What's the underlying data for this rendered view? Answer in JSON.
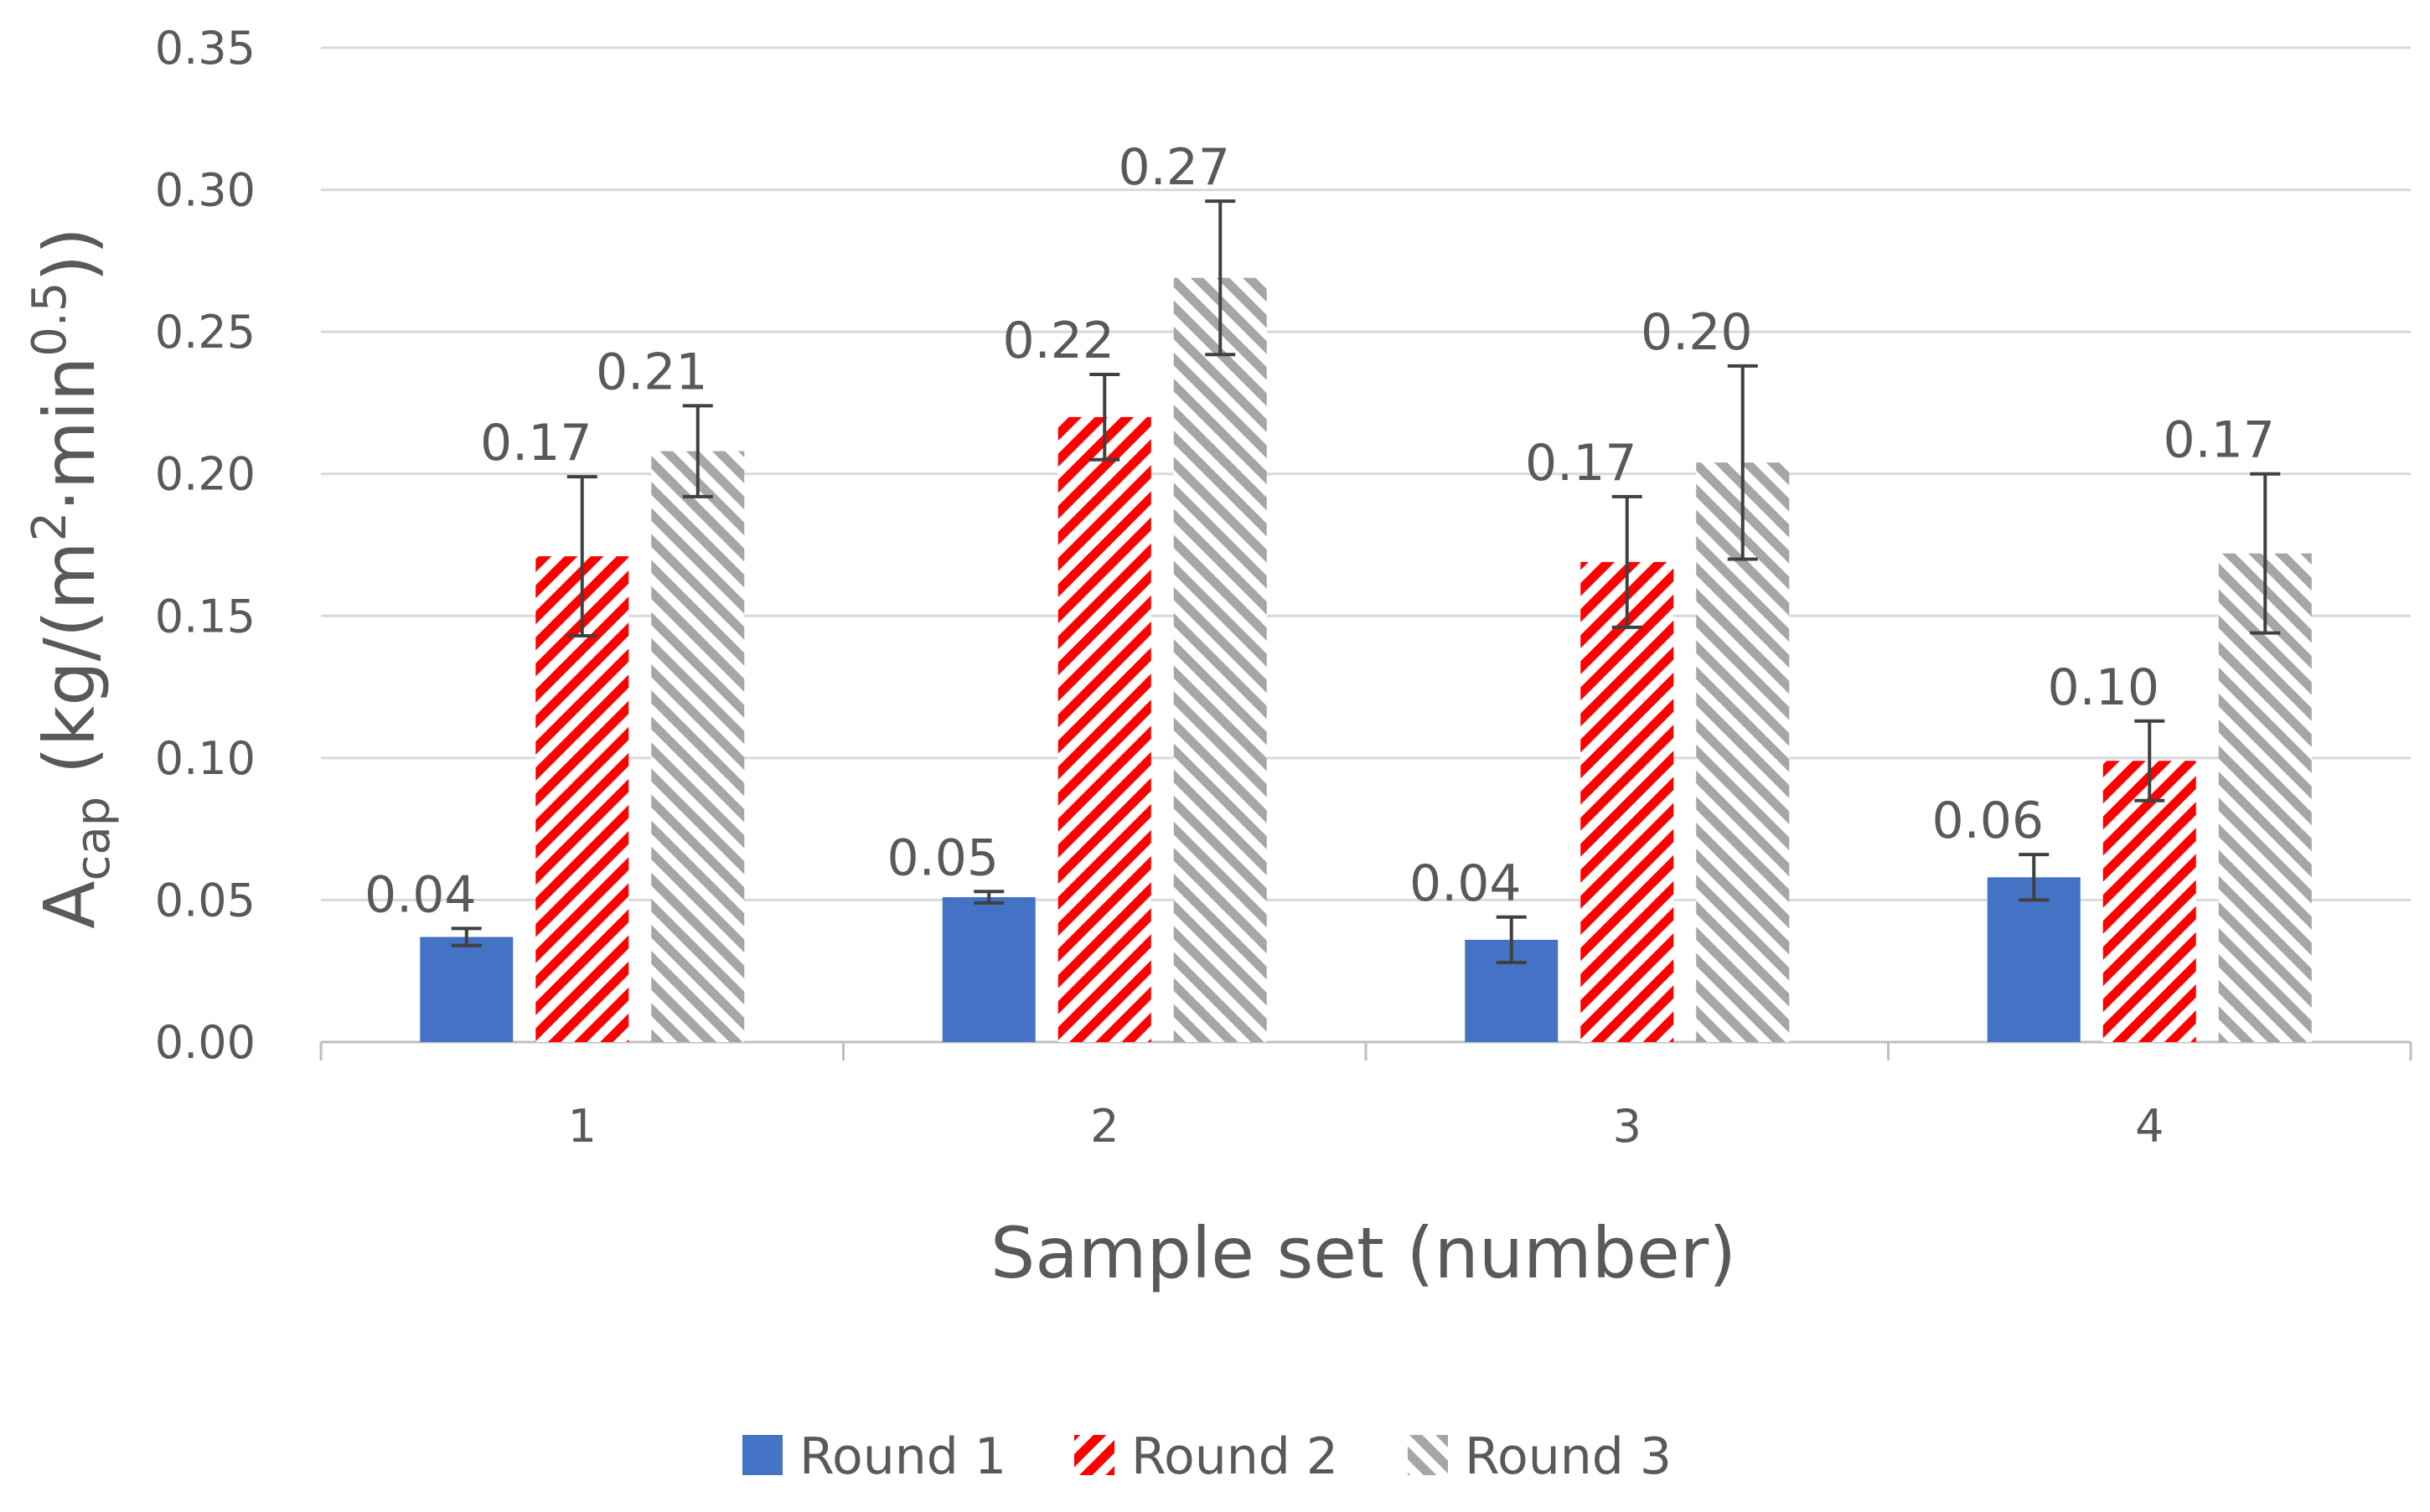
{
  "chart_data": {
    "type": "bar",
    "xlabel": "Sample set (number)",
    "ylabel": {
      "main": "A",
      "sub": "cap",
      "unit_open": " (kg/(m",
      "sup1": "2",
      "mid": "·min",
      "sup2": "0.5",
      "unit_close": "))"
    },
    "categories": [
      "1",
      "2",
      "3",
      "4"
    ],
    "ylim": [
      0,
      0.35
    ],
    "yticks": [
      "0.00",
      "0.05",
      "0.10",
      "0.15",
      "0.20",
      "0.25",
      "0.30",
      "0.35"
    ],
    "grid": true,
    "legend_position": "bottom",
    "series": [
      {
        "name": "Round 1",
        "values": [
          0.037,
          0.051,
          0.036,
          0.058
        ],
        "errors": [
          0.003,
          0.002,
          0.008,
          0.008
        ],
        "labels": [
          "0.04",
          "0.05",
          "0.04",
          "0.06"
        ],
        "color": "#4472C4",
        "fill": "solid"
      },
      {
        "name": "Round 2",
        "values": [
          0.171,
          0.22,
          0.169,
          0.099
        ],
        "errors": [
          0.028,
          0.015,
          0.023,
          0.014
        ],
        "labels": [
          "0.17",
          "0.22",
          "0.17",
          "0.10"
        ],
        "color": "#FF0000",
        "fill": "hatch"
      },
      {
        "name": "Round 3",
        "values": [
          0.208,
          0.269,
          0.204,
          0.172
        ],
        "errors": [
          0.016,
          0.027,
          0.034,
          0.028
        ],
        "labels": [
          "0.21",
          "0.27",
          "0.20",
          "0.17"
        ],
        "color": "#A6A6A6",
        "fill": "hatch"
      }
    ]
  }
}
